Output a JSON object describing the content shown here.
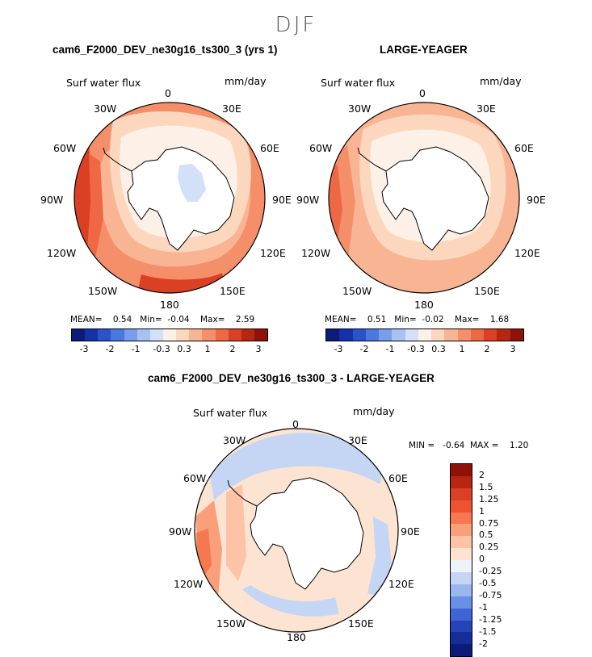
{
  "season": "DJF",
  "panels": [
    {
      "title": "cam6_F2000_DEV_ne30g16_ts300_3 (yrs 1)",
      "variable": "Surf water flux",
      "units": "mm/day",
      "stats": {
        "mean_label": "MEAN=",
        "mean": "0.54",
        "min_label": "Min=",
        "min": "-0.04",
        "max_label": "Max=",
        "max": "2.59"
      },
      "has_ice_values": true
    },
    {
      "title": "LARGE-YEAGER",
      "variable": "Surf water flux",
      "units": "mm/day",
      "stats": {
        "mean_label": "MEAN=",
        "mean": "0.51",
        "min_label": "Min=",
        "min": "-0.02",
        "max_label": "Max=",
        "max": "1.68"
      },
      "has_ice_values": false
    },
    {
      "title": "cam6_F2000_DEV_ne30g16_ts300_3 - LARGE-YEAGER",
      "variable": "Surf water flux",
      "units": "mm/day",
      "minmax_text": "MIN =   -0.64  MAX =    1.20",
      "min": "-0.64",
      "max": "1.20"
    }
  ],
  "longitude_labels": [
    "0",
    "30E",
    "60E",
    "90E",
    "120E",
    "150E",
    "180",
    "150W",
    "120W",
    "90W",
    "60W",
    "30W"
  ],
  "top_colorbar": {
    "ticks": [
      "-3",
      "-2",
      "-1",
      "-0.3",
      "0.3",
      "1",
      "2",
      "3"
    ],
    "colors": [
      "#0c1a7a",
      "#1530a8",
      "#2a52cc",
      "#4a78e0",
      "#7a9cec",
      "#a8c0f2",
      "#d2e0f8",
      "#fdf0e6",
      "#fcd7be",
      "#f9b593",
      "#f58f6a",
      "#ee6845",
      "#d94024",
      "#b82612",
      "#8f1208"
    ]
  },
  "diff_colorbar": {
    "labels": [
      "2",
      "1.5",
      "1.25",
      "1",
      "0.75",
      "0.5",
      "0.25",
      "0",
      "-0.25",
      "-0.5",
      "-0.75",
      "-1",
      "-1.25",
      "-1.5",
      "-2"
    ],
    "colors": [
      "#8f1208",
      "#b82612",
      "#d94024",
      "#ee5230",
      "#f5784f",
      "#f99f7a",
      "#fcc3a6",
      "#fde4d2",
      "#eef2fa",
      "#c4d6f4",
      "#9ab6ee",
      "#6a90e6",
      "#3f64d6",
      "#2544b8",
      "#162c96",
      "#0c1a7a"
    ]
  },
  "field_colors": {
    "land": "#ffffff",
    "zero": "#fdf0e6",
    "low": "#fcd7be",
    "mid": "#f9b593",
    "high": "#f58f6a",
    "very_high": "#ee6845",
    "extreme": "#d94024",
    "neg_low": "#d2e0f8",
    "neg_mid": "#a8c0f2",
    "neg_high": "#7a9cec"
  }
}
